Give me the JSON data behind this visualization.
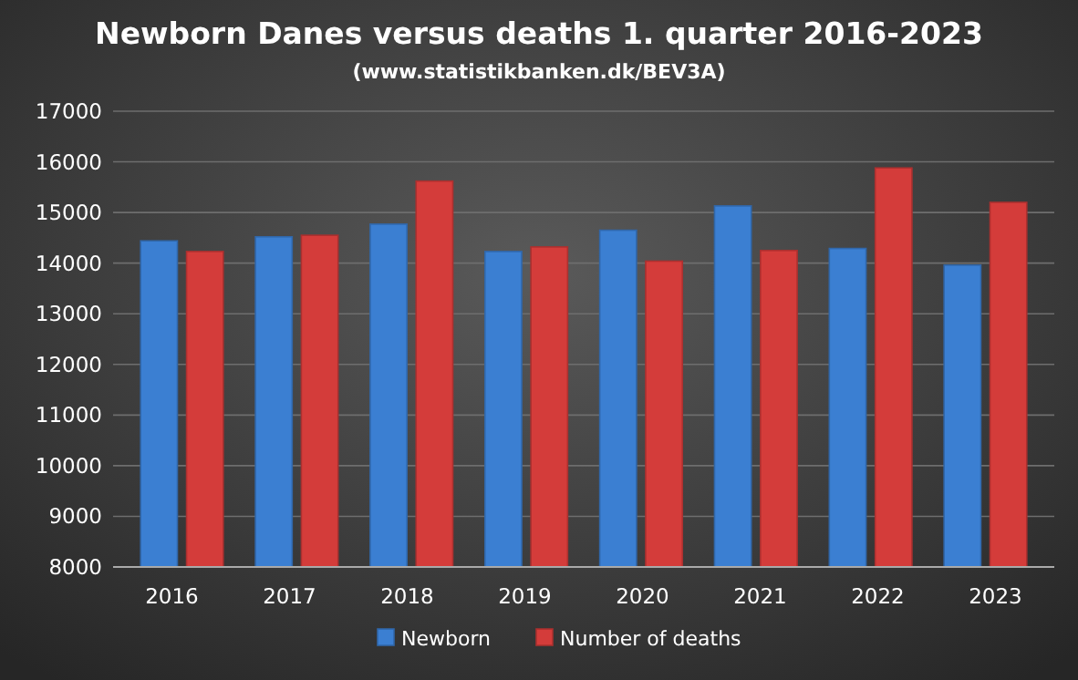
{
  "chart_data": {
    "type": "bar",
    "title": "Newborn Danes versus deaths 1. quarter 2016-2023",
    "subtitle": "(www.statistikbanken.dk/BEV3A)",
    "categories": [
      "2016",
      "2017",
      "2018",
      "2019",
      "2020",
      "2021",
      "2022",
      "2023"
    ],
    "series": [
      {
        "name": "Newborn",
        "color": "#3b7fd2",
        "values": [
          14440,
          14520,
          14770,
          14230,
          14650,
          15130,
          14290,
          13960
        ]
      },
      {
        "name": "Number of deaths",
        "color": "#d43c3a",
        "values": [
          14230,
          14550,
          15620,
          14320,
          14040,
          14250,
          15880,
          15200
        ]
      }
    ],
    "ylim": [
      8000,
      17000
    ],
    "yticks": [
      8000,
      9000,
      10000,
      11000,
      12000,
      13000,
      14000,
      15000,
      16000,
      17000
    ],
    "grid": "y",
    "legend": "bottom"
  }
}
